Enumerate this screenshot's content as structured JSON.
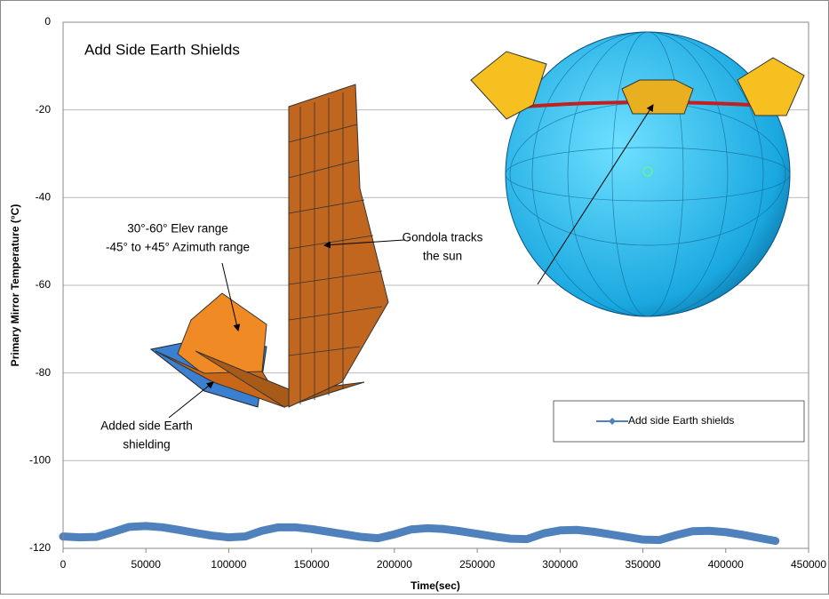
{
  "chart_data": {
    "type": "line",
    "title": "Add Side Earth Shields",
    "x_label": "Time(sec)",
    "y_label": "Primary Mirror Temperature (°C)",
    "x": [
      0,
      10000,
      20000,
      30000,
      40000,
      50000,
      60000,
      70000,
      80000,
      90000,
      100000,
      110000,
      120000,
      130000,
      140000,
      150000,
      160000,
      170000,
      180000,
      190000,
      200000,
      210000,
      220000,
      230000,
      240000,
      250000,
      260000,
      270000,
      280000,
      290000,
      300000,
      310000,
      320000,
      330000,
      340000,
      350000,
      360000,
      370000,
      380000,
      390000,
      400000,
      410000,
      420000,
      430000
    ],
    "series": [
      {
        "name": "Add side Earth shields",
        "color": "#4f81bd",
        "values": [
          -117.3,
          -117.5,
          -117.4,
          -116.3,
          -115.1,
          -114.9,
          -115.2,
          -115.8,
          -116.5,
          -117.1,
          -117.5,
          -117.3,
          -116.0,
          -115.2,
          -115.2,
          -115.6,
          -116.2,
          -116.8,
          -117.4,
          -117.7,
          -116.8,
          -115.7,
          -115.4,
          -115.6,
          -116.1,
          -116.7,
          -117.3,
          -117.8,
          -117.9,
          -116.6,
          -115.9,
          -115.8,
          -116.2,
          -116.8,
          -117.4,
          -118.0,
          -118.1,
          -117.0,
          -116.1,
          -116.0,
          -116.3,
          -116.9,
          -117.6,
          -118.3
        ]
      }
    ],
    "xlim": [
      0,
      450000
    ],
    "xticks": [
      0,
      50000,
      100000,
      150000,
      200000,
      250000,
      300000,
      350000,
      400000,
      450000
    ],
    "ylim": [
      -120,
      0
    ],
    "yticks": [
      0,
      -20,
      -40,
      -60,
      -80,
      -100,
      -120
    ],
    "grid": true,
    "legend": "right",
    "annotations": [
      [
        "30°-60° Elev range",
        "-45° to +45° Azimuth range"
      ],
      [
        "Gondola tracks",
        "the sun"
      ],
      [
        "Added side Earth",
        "shielding"
      ]
    ]
  }
}
